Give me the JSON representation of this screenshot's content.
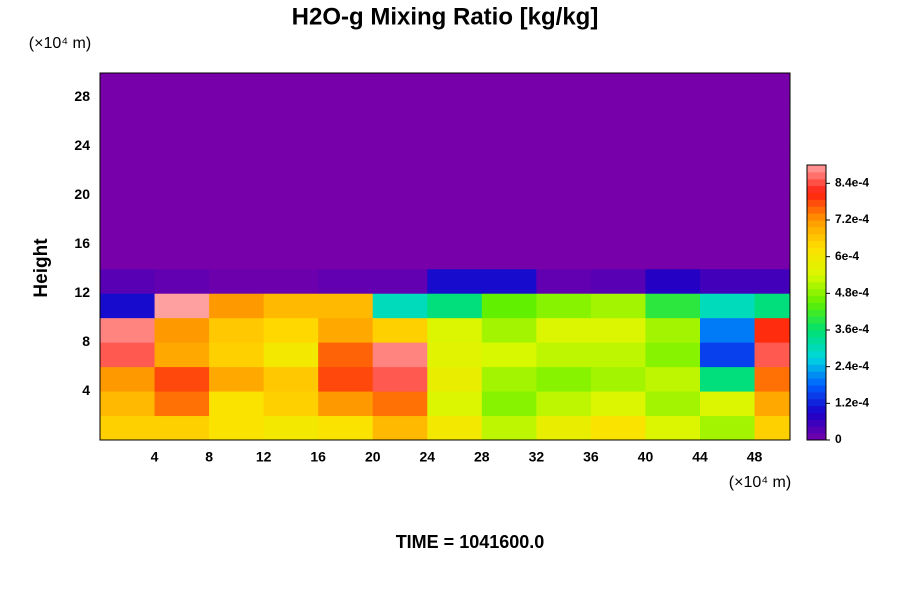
{
  "chart_data": {
    "type": "heatmap",
    "title": "H2O-g Mixing Ratio [kg/kg]",
    "y_label": "Height",
    "y_unit": "(×10⁴ m)",
    "x_unit": "(×10⁴ m)",
    "time_label": "TIME = 1041600.0",
    "xlim": [
      0,
      50.6
    ],
    "ylim": [
      0,
      30
    ],
    "xticks": [
      4,
      8,
      12,
      16,
      20,
      24,
      28,
      32,
      36,
      40,
      44,
      48
    ],
    "yticks": [
      4,
      8,
      12,
      16,
      20,
      24,
      28
    ],
    "x": [
      2,
      6,
      10,
      14,
      18,
      22,
      26,
      30,
      34,
      38,
      42,
      46,
      50
    ],
    "y": [
      1,
      3,
      5,
      7,
      9,
      11,
      13,
      15,
      17,
      19,
      21,
      23,
      25,
      27,
      29
    ],
    "z": [
      [
        0.00065,
        0.00065,
        0.00062,
        0.0006,
        0.00062,
        0.00068,
        0.0006,
        0.00052,
        0.00058,
        0.00062,
        0.00055,
        0.0005,
        0.00065
      ],
      [
        0.00068,
        0.00075,
        0.00062,
        0.00065,
        0.00072,
        0.00075,
        0.00055,
        0.00048,
        0.00052,
        0.00055,
        0.0005,
        0.00055,
        0.0007
      ],
      [
        0.00072,
        0.00078,
        0.0007,
        0.00066,
        0.00078,
        0.00085,
        0.00058,
        0.0005,
        0.00048,
        0.0005,
        0.00052,
        0.00035,
        0.00075
      ],
      [
        0.00085,
        0.0007,
        0.00065,
        0.0006,
        0.00076,
        0.00088,
        0.00056,
        0.00054,
        0.00052,
        0.00052,
        0.00048,
        0.00015,
        0.00085
      ],
      [
        0.00088,
        0.00072,
        0.00066,
        0.00064,
        0.0007,
        0.00065,
        0.00055,
        0.0005,
        0.00055,
        0.00055,
        0.0005,
        0.0002,
        0.0008
      ],
      [
        0.0001,
        0.0009,
        0.00072,
        0.00068,
        0.00068,
        0.0003,
        0.00035,
        0.00045,
        0.00048,
        0.0005,
        0.0004,
        0.0003,
        0.00035
      ],
      [
        3e-05,
        2e-05,
        1e-05,
        1e-05,
        2e-05,
        2e-05,
        0.0001,
        0.0001,
        2e-05,
        3e-05,
        8e-05,
        5e-05,
        5e-05
      ],
      [
        0,
        0,
        0,
        0,
        0,
        0,
        0,
        0,
        0,
        0,
        0,
        0,
        0
      ],
      [
        0,
        0,
        0,
        0,
        0,
        0,
        0,
        0,
        0,
        0,
        0,
        0,
        0
      ],
      [
        0,
        0,
        0,
        0,
        0,
        0,
        0,
        0,
        0,
        0,
        0,
        0,
        0
      ],
      [
        0,
        0,
        0,
        0,
        0,
        0,
        0,
        0,
        0,
        0,
        0,
        0,
        0
      ],
      [
        0,
        0,
        0,
        0,
        0,
        0,
        0,
        0,
        0,
        0,
        0,
        0,
        0
      ],
      [
        0,
        0,
        0,
        0,
        0,
        0,
        0,
        0,
        0,
        0,
        0,
        0,
        0
      ],
      [
        0,
        0,
        0,
        0,
        0,
        0,
        0,
        0,
        0,
        0,
        0,
        0,
        0
      ],
      [
        0,
        0,
        0,
        0,
        0,
        0,
        0,
        0,
        0,
        0,
        0,
        0,
        0
      ]
    ],
    "zlim": [
      0,
      0.0009
    ],
    "zticks": [
      0,
      {
        "value": 0.00012,
        "label": "1.2e-4"
      },
      {
        "value": 0.00024,
        "label": "2.4e-4"
      },
      {
        "value": 0.00036,
        "label": "3.6e-4"
      },
      {
        "value": 0.00048,
        "label": "4.8e-4"
      },
      {
        "value": 0.0006,
        "label": "6e-4"
      },
      {
        "value": 0.00072,
        "label": "7.2e-4"
      },
      {
        "value": 0.00084,
        "label": "8.4e-4"
      }
    ],
    "colorscale": [
      "#7700aa",
      "#1a00c8",
      "#0060ff",
      "#00d8e0",
      "#00e070",
      "#60f000",
      "#d8f800",
      "#ffe000",
      "#ff9900",
      "#ff2010",
      "#ffa0a0"
    ]
  }
}
